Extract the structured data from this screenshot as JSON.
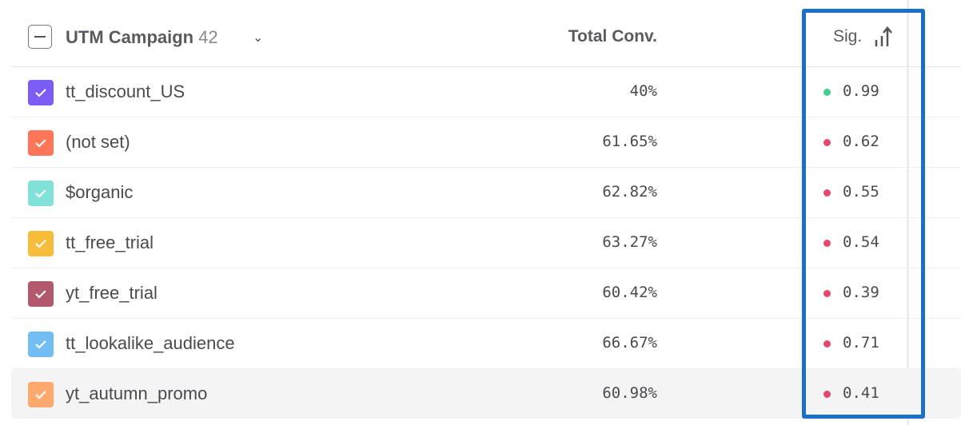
{
  "header": {
    "title": "UTM Campaign",
    "count": "42",
    "total_conv_label": "Total Conv.",
    "sig_label": "Sig.",
    "sort_icon": "sort-ascending-bars-icon"
  },
  "colors": {
    "sig_good": "#3ecf8e",
    "sig_bad": "#e5486f",
    "highlight": "#1a6fc9"
  },
  "rows": [
    {
      "name": "tt_discount_US",
      "conv": "40%",
      "sig": "0.99",
      "color": "#7b5cf5",
      "sig_status": "good"
    },
    {
      "name": "(not set)",
      "conv": "61.65%",
      "sig": "0.62",
      "color": "#ff7557",
      "sig_status": "bad"
    },
    {
      "name": "$organic",
      "conv": "62.82%",
      "sig": "0.55",
      "color": "#80e1d9",
      "sig_status": "bad"
    },
    {
      "name": "tt_free_trial",
      "conv": "63.27%",
      "sig": "0.54",
      "color": "#f8bc3b",
      "sig_status": "bad"
    },
    {
      "name": "yt_free_trial",
      "conv": "60.42%",
      "sig": "0.39",
      "color": "#b2596e",
      "sig_status": "bad"
    },
    {
      "name": "tt_lookalike_audience",
      "conv": "66.67%",
      "sig": "0.71",
      "color": "#72bef4",
      "sig_status": "bad"
    },
    {
      "name": "yt_autumn_promo",
      "conv": "60.98%",
      "sig": "0.41",
      "color": "#ffa96f",
      "sig_status": "bad",
      "hovered": true
    }
  ]
}
